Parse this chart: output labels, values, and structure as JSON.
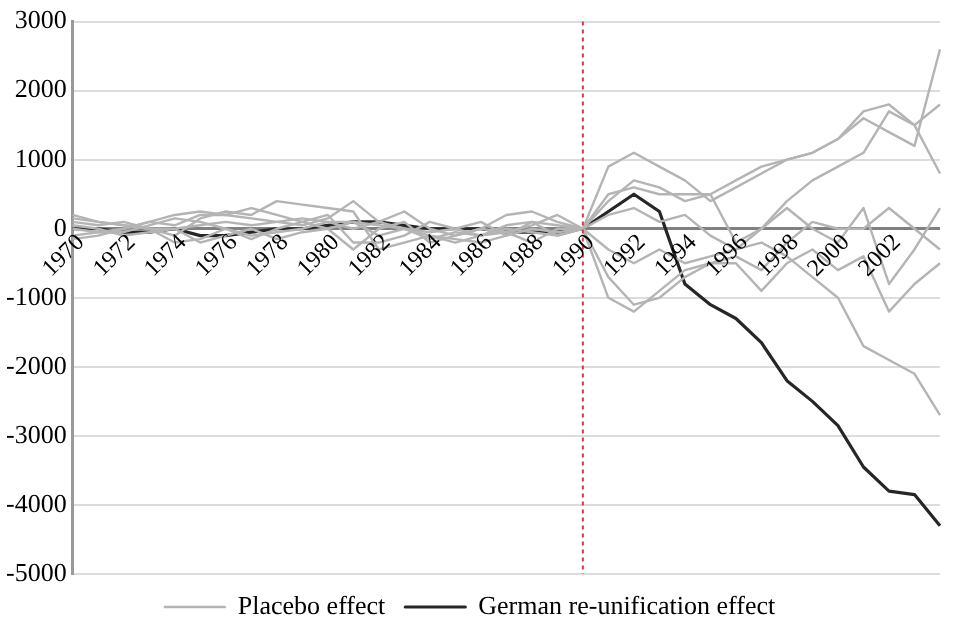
{
  "chart_data": {
    "type": "line",
    "categories": [
      "1970",
      null,
      "1972",
      null,
      "1974",
      null,
      "1976",
      null,
      "1978",
      null,
      "1980",
      null,
      "1982",
      null,
      "1984",
      null,
      "1986",
      null,
      "1988",
      null,
      "1990",
      null,
      "1992",
      null,
      "1994",
      null,
      "1996",
      null,
      "1998",
      null,
      "2000",
      null,
      "2002",
      null,
      null
    ],
    "series": [
      {
        "name": "Placebo effect",
        "color": "#b4b4b4",
        "values": [
          200,
          100,
          50,
          0,
          -100,
          150,
          250,
          200,
          400,
          350,
          300,
          250,
          -300,
          -200,
          -100,
          -150,
          -200,
          -100,
          100,
          50,
          0,
          400,
          700,
          600,
          400,
          500,
          700,
          900,
          1000,
          1100,
          1300,
          1600,
          1400,
          1200,
          2600
        ]
      },
      {
        "color": "#b4b4b4",
        "values": [
          -150,
          -100,
          0,
          100,
          50,
          200,
          200,
          150,
          100,
          50,
          150,
          400,
          100,
          250,
          0,
          -100,
          0,
          200,
          250,
          100,
          0,
          900,
          1100,
          900,
          700,
          400,
          600,
          800,
          1000,
          1100,
          1300,
          1700,
          1800,
          1500,
          1800
        ]
      },
      {
        "color": "#b4b4b4",
        "values": [
          100,
          50,
          100,
          0,
          -200,
          -150,
          0,
          -100,
          -50,
          0,
          100,
          100,
          -100,
          0,
          -150,
          -50,
          -100,
          0,
          -50,
          -100,
          0,
          500,
          600,
          500,
          500,
          500,
          -200,
          0,
          400,
          700,
          900,
          1100,
          1700,
          1500,
          800
        ]
      },
      {
        "color": "#b4b4b4",
        "values": [
          0,
          -50,
          -50,
          50,
          150,
          100,
          0,
          -150,
          0,
          100,
          200,
          -200,
          -200,
          -100,
          100,
          0,
          -100,
          -50,
          50,
          200,
          0,
          -300,
          -500,
          -300,
          -500,
          -400,
          -300,
          0,
          300,
          0,
          -200,
          300,
          -800,
          -300,
          300
        ]
      },
      {
        "color": "#b4b4b4",
        "values": [
          50,
          0,
          -100,
          -50,
          0,
          -200,
          -100,
          0,
          -150,
          -50,
          0,
          -300,
          0,
          100,
          -200,
          -100,
          0,
          -50,
          -200,
          0,
          0,
          -700,
          -1100,
          -1000,
          -700,
          -500,
          -400,
          -600,
          -200,
          100,
          0,
          0,
          300,
          0,
          -300
        ]
      },
      {
        "color": "#b4b4b4",
        "values": [
          -100,
          -50,
          0,
          100,
          200,
          250,
          200,
          300,
          200,
          100,
          0,
          100,
          50,
          0,
          -50,
          0,
          100,
          -100,
          0,
          -50,
          0,
          -1000,
          -1200,
          -900,
          -600,
          -500,
          -500,
          -900,
          -500,
          -300,
          -600,
          -400,
          -1200,
          -800,
          -500
        ]
      },
      {
        "color": "#b4b4b4",
        "values": [
          150,
          100,
          50,
          0,
          0,
          50,
          100,
          50,
          100,
          150,
          100,
          0,
          100,
          0,
          -100,
          -200,
          -100,
          50,
          100,
          -100,
          0,
          200,
          300,
          100,
          200,
          -100,
          -300,
          -200,
          -400,
          -700,
          -1000,
          -1700,
          -1900,
          -2100,
          -2700
        ]
      },
      {
        "name": "German re-unification effect",
        "color": "#262626",
        "values": [
          0,
          0,
          -50,
          -50,
          0,
          -100,
          -100,
          -50,
          0,
          0,
          50,
          100,
          100,
          50,
          0,
          0,
          0,
          -50,
          -50,
          -50,
          0,
          250,
          500,
          250,
          -800,
          -1100,
          -1300,
          -1650,
          -2200,
          -2500,
          -2850,
          -3450,
          -3800,
          -3850,
          -4300
        ]
      }
    ],
    "ylim": [
      -5000,
      3000
    ],
    "yticks": [
      -5000,
      -4000,
      -3000,
      -2000,
      -1000,
      0,
      1000,
      2000,
      3000
    ],
    "grid": "y",
    "legend": "bottom",
    "marker": "none",
    "line_style": "solid",
    "ref_lines": [
      {
        "axis": "x",
        "value": "1990",
        "color": "#d04040",
        "line_style": "dotted"
      }
    ]
  }
}
